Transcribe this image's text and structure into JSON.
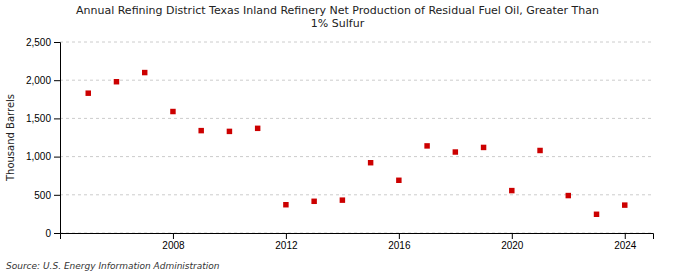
{
  "chart_data": {
    "type": "scatter",
    "title": "Annual Refining District Texas Inland Refinery Net Production of Residual Fuel Oil, Greater Than\n1% Sulfur",
    "ylabel": "Thousand Barrels",
    "source": "Source: U.S. Energy Information Administration",
    "x": [
      2005,
      2006,
      2007,
      2008,
      2009,
      2010,
      2011,
      2012,
      2013,
      2014,
      2015,
      2016,
      2017,
      2018,
      2019,
      2020,
      2021,
      2022,
      2023,
      2024
    ],
    "values": [
      1830,
      1980,
      2100,
      1590,
      1340,
      1330,
      1370,
      370,
      415,
      430,
      920,
      690,
      1140,
      1060,
      1120,
      555,
      1080,
      490,
      245,
      365
    ],
    "color": "#cc0000",
    "marker": "square",
    "xlim": [
      2004,
      2025
    ],
    "xticks": [
      2008,
      2012,
      2016,
      2020,
      2024
    ],
    "ylim": [
      0,
      2500
    ],
    "yticks": [
      0,
      500,
      {
        "value": 1000,
        "label": "1,000"
      },
      {
        "value": 1500,
        "label": "1,500"
      },
      {
        "value": 2000,
        "label": "2,000"
      },
      {
        "value": 2500,
        "label": "2,500"
      }
    ],
    "grid": "y"
  }
}
